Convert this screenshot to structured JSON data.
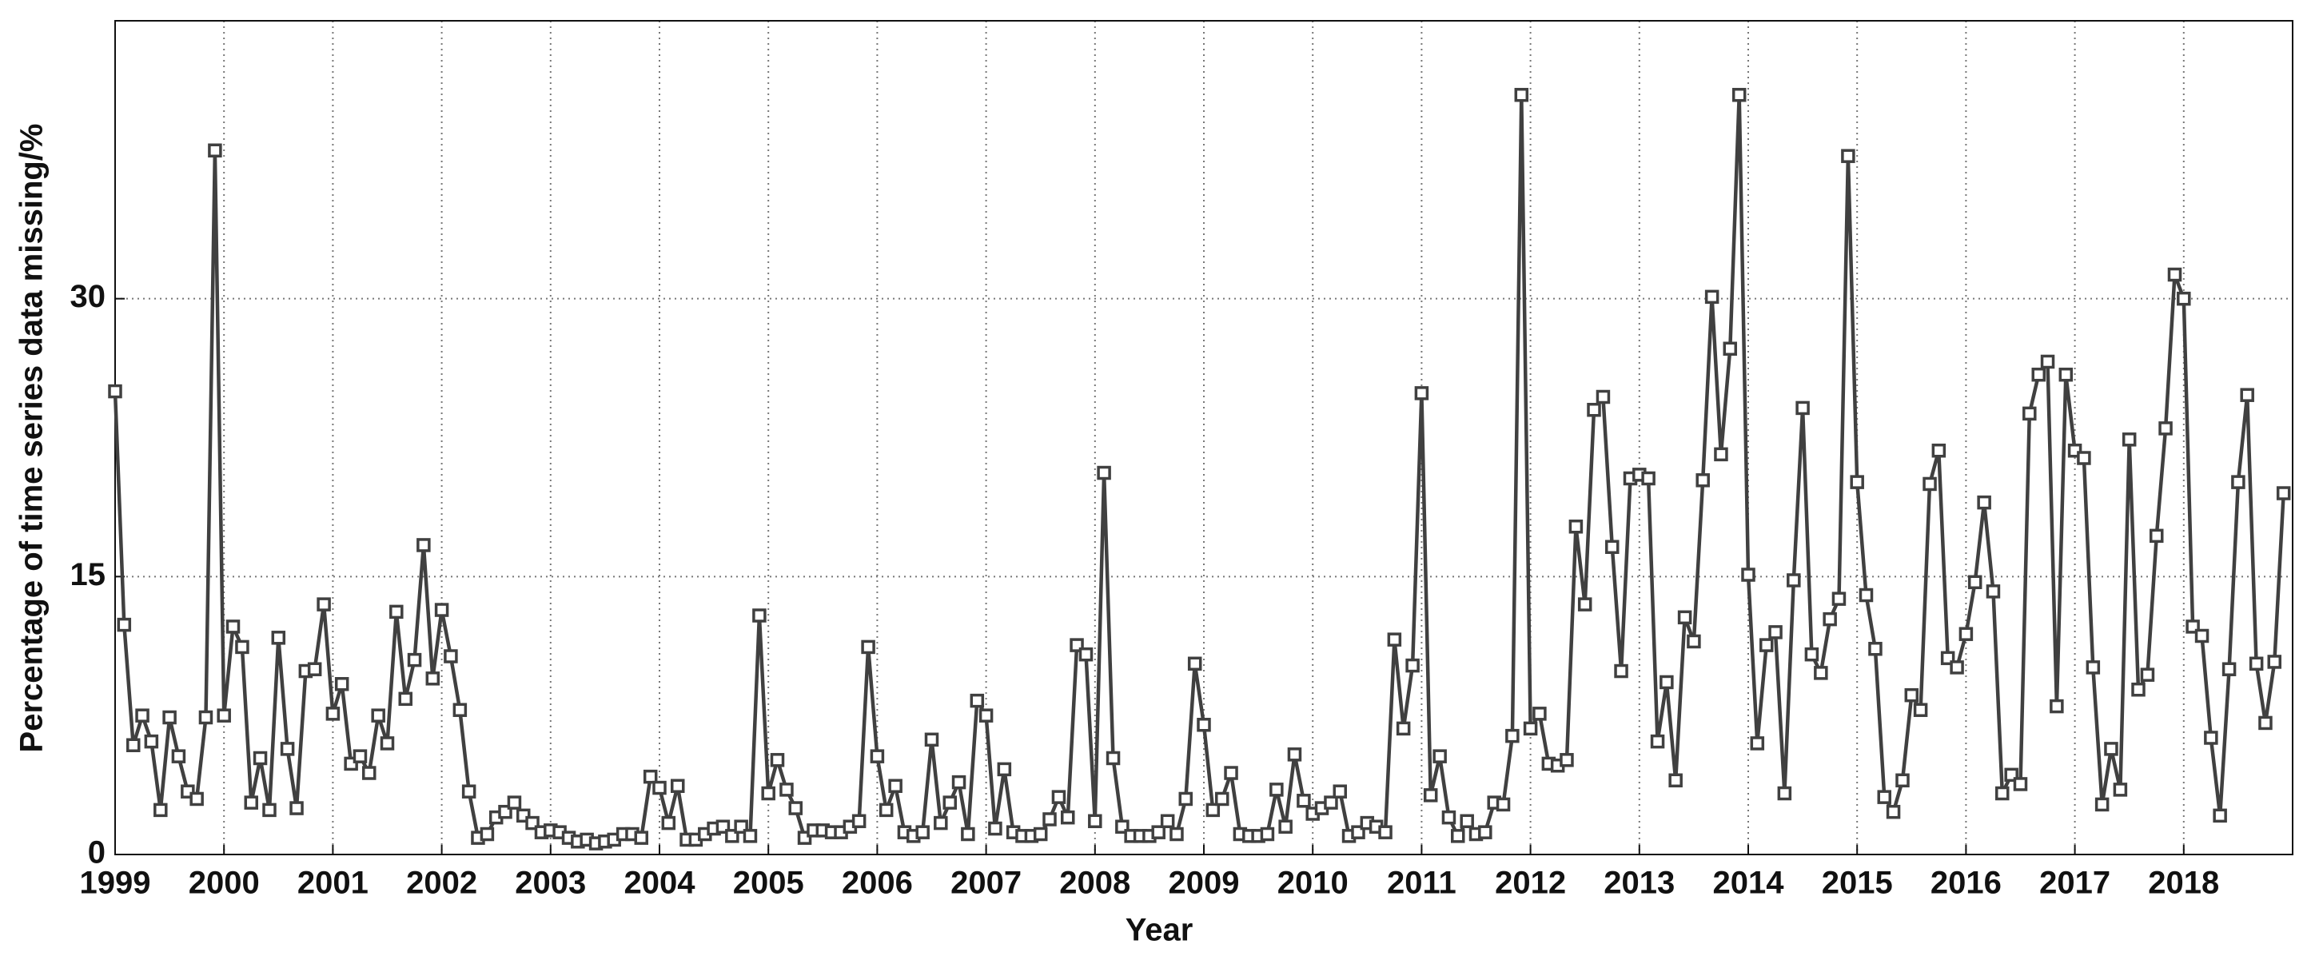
{
  "chart_data": {
    "type": "line",
    "xlabel": "Year",
    "ylabel": "Percentage of time series data missing/%",
    "x": [
      1999.0,
      1999.083,
      1999.167,
      1999.25,
      1999.333,
      1999.417,
      1999.5,
      1999.583,
      1999.667,
      1999.75,
      1999.833,
      1999.917,
      2000.0,
      2000.083,
      2000.167,
      2000.25,
      2000.333,
      2000.417,
      2000.5,
      2000.583,
      2000.667,
      2000.75,
      2000.833,
      2000.917,
      2001.0,
      2001.083,
      2001.167,
      2001.25,
      2001.333,
      2001.417,
      2001.5,
      2001.583,
      2001.667,
      2001.75,
      2001.833,
      2001.917,
      2002.0,
      2002.083,
      2002.167,
      2002.25,
      2002.333,
      2002.417,
      2002.5,
      2002.583,
      2002.667,
      2002.75,
      2002.833,
      2002.917,
      2003.0,
      2003.083,
      2003.167,
      2003.25,
      2003.333,
      2003.417,
      2003.5,
      2003.583,
      2003.667,
      2003.75,
      2003.833,
      2003.917,
      2004.0,
      2004.083,
      2004.167,
      2004.25,
      2004.333,
      2004.417,
      2004.5,
      2004.583,
      2004.667,
      2004.75,
      2004.833,
      2004.917,
      2005.0,
      2005.083,
      2005.167,
      2005.25,
      2005.333,
      2005.417,
      2005.5,
      2005.583,
      2005.667,
      2005.75,
      2005.833,
      2005.917,
      2006.0,
      2006.083,
      2006.167,
      2006.25,
      2006.333,
      2006.417,
      2006.5,
      2006.583,
      2006.667,
      2006.75,
      2006.833,
      2006.917,
      2007.0,
      2007.083,
      2007.167,
      2007.25,
      2007.333,
      2007.417,
      2007.5,
      2007.583,
      2007.667,
      2007.75,
      2007.833,
      2007.917,
      2008.0,
      2008.083,
      2008.167,
      2008.25,
      2008.333,
      2008.417,
      2008.5,
      2008.583,
      2008.667,
      2008.75,
      2008.833,
      2008.917,
      2009.0,
      2009.083,
      2009.167,
      2009.25,
      2009.333,
      2009.417,
      2009.5,
      2009.583,
      2009.667,
      2009.75,
      2009.833,
      2009.917,
      2010.0,
      2010.083,
      2010.167,
      2010.25,
      2010.333,
      2010.417,
      2010.5,
      2010.583,
      2010.667,
      2010.75,
      2010.833,
      2010.917,
      2011.0,
      2011.083,
      2011.167,
      2011.25,
      2011.333,
      2011.417,
      2011.5,
      2011.583,
      2011.667,
      2011.75,
      2011.833,
      2011.917,
      2012.0,
      2012.083,
      2012.167,
      2012.25,
      2012.333,
      2012.417,
      2012.5,
      2012.583,
      2012.667,
      2012.75,
      2012.833,
      2012.917,
      2013.0,
      2013.083,
      2013.167,
      2013.25,
      2013.333,
      2013.417,
      2013.5,
      2013.583,
      2013.667,
      2013.75,
      2013.833,
      2013.917,
      2014.0,
      2014.083,
      2014.167,
      2014.25,
      2014.333,
      2014.417,
      2014.5,
      2014.583,
      2014.667,
      2014.75,
      2014.833,
      2014.917,
      2015.0,
      2015.083,
      2015.167,
      2015.25,
      2015.333,
      2015.417,
      2015.5,
      2015.583,
      2015.667,
      2015.75,
      2015.833,
      2015.917,
      2016.0,
      2016.083,
      2016.167,
      2016.25,
      2016.333,
      2016.417,
      2016.5,
      2016.583,
      2016.667,
      2016.75,
      2016.833,
      2016.917,
      2017.0,
      2017.083,
      2017.167,
      2017.25,
      2017.333,
      2017.417,
      2017.5,
      2017.583,
      2017.667,
      2017.75,
      2017.833,
      2017.917,
      2018.0,
      2018.083,
      2018.167,
      2018.25,
      2018.333,
      2018.417,
      2018.5,
      2018.583,
      2018.667,
      2018.75,
      2018.833,
      2018.917
    ],
    "values": [
      25,
      12.4,
      5.9,
      7.5,
      6.1,
      2.4,
      7.4,
      5.3,
      3.4,
      3.0,
      7.4,
      38,
      7.5,
      12.3,
      11.2,
      2.8,
      5.2,
      2.4,
      11.7,
      5.7,
      2.5,
      9.9,
      10.0,
      13.5,
      7.6,
      9.2,
      4.9,
      5.3,
      4.4,
      7.5,
      6.0,
      13.1,
      8.4,
      10.5,
      16.7,
      9.5,
      13.2,
      10.7,
      7.8,
      3.4,
      0.9,
      1.1,
      2.0,
      2.3,
      2.8,
      2.1,
      1.7,
      1.2,
      1.3,
      1.2,
      0.9,
      0.7,
      0.8,
      0.6,
      0.7,
      0.8,
      1.1,
      1.1,
      0.9,
      4.2,
      3.6,
      1.7,
      3.7,
      0.8,
      0.8,
      1.1,
      1.4,
      1.5,
      1.0,
      1.5,
      1.0,
      12.9,
      3.3,
      5.1,
      3.5,
      2.5,
      0.9,
      1.3,
      1.3,
      1.2,
      1.2,
      1.5,
      1.8,
      11.2,
      5.3,
      2.4,
      3.7,
      1.2,
      1.0,
      1.2,
      6.2,
      1.7,
      2.8,
      3.9,
      1.1,
      8.3,
      7.5,
      1.4,
      4.6,
      1.2,
      1.0,
      1.0,
      1.1,
      1.9,
      3.1,
      2.0,
      11.3,
      10.8,
      1.8,
      20.6,
      5.2,
      1.5,
      1.0,
      1.0,
      1.0,
      1.2,
      1.8,
      1.1,
      3.0,
      10.3,
      7.0,
      2.4,
      3.0,
      4.4,
      1.1,
      1.0,
      1.0,
      1.1,
      3.5,
      1.5,
      5.4,
      2.9,
      2.2,
      2.5,
      2.8,
      3.4,
      1.0,
      1.2,
      1.7,
      1.5,
      1.2,
      11.6,
      6.8,
      10.2,
      24.9,
      3.2,
      5.3,
      2.0,
      1.0,
      1.8,
      1.1,
      1.2,
      2.8,
      2.7,
      6.4,
      41,
      6.8,
      7.6,
      4.9,
      4.8,
      5.1,
      17.7,
      13.5,
      24.0,
      24.7,
      16.6,
      9.9,
      20.3,
      20.5,
      20.3,
      6.1,
      9.3,
      4.0,
      12.8,
      11.5,
      20.2,
      30.1,
      21.6,
      27.3,
      41,
      15.1,
      6.0,
      11.3,
      12.0,
      3.3,
      14.8,
      24.1,
      10.8,
      9.8,
      12.7,
      13.8,
      37.7,
      20.1,
      14.0,
      11.1,
      3.1,
      2.3,
      4.0,
      8.6,
      7.8,
      20.0,
      21.8,
      10.6,
      10.1,
      11.9,
      14.7,
      19.0,
      14.2,
      3.3,
      4.3,
      3.8,
      23.8,
      25.9,
      26.6,
      8.0,
      25.9,
      21.8,
      21.4,
      10.1,
      2.7,
      5.7,
      3.5,
      22.4,
      8.9,
      9.7,
      17.2,
      23.0,
      31.3,
      30.0,
      12.3,
      11.8,
      6.3,
      2.1,
      10.0,
      20.1,
      24.8,
      10.3,
      7.1,
      10.4,
      19.5
    ],
    "color": "#404040",
    "xlim": [
      1999,
      2019
    ],
    "xticks": [
      1999,
      2000,
      2001,
      2002,
      2003,
      2004,
      2005,
      2006,
      2007,
      2008,
      2009,
      2010,
      2011,
      2012,
      2013,
      2014,
      2015,
      2016,
      2017,
      2018
    ],
    "ylim": [
      0,
      45
    ],
    "yticks": [
      0,
      15,
      30
    ],
    "grid": true
  }
}
